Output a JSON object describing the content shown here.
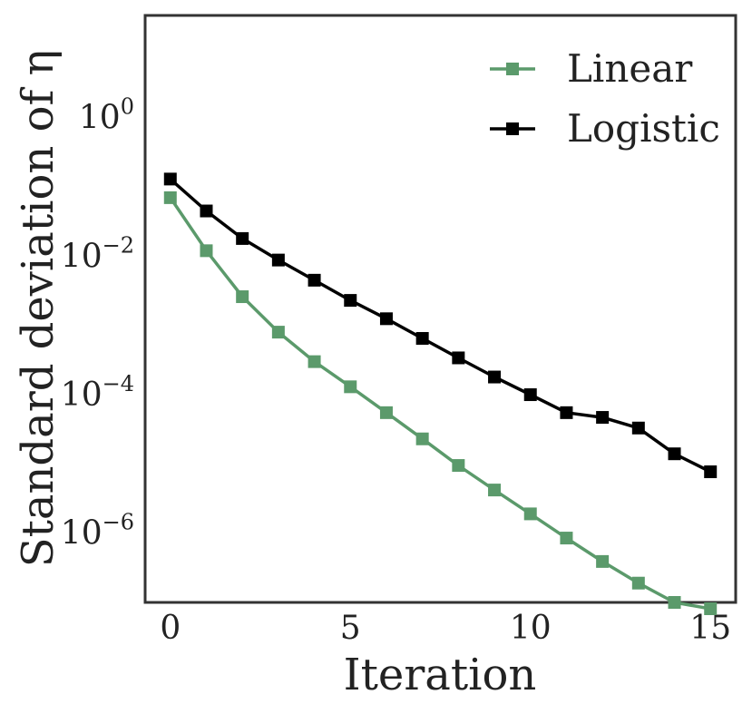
{
  "chart_data": {
    "type": "line",
    "xlabel": "Iteration",
    "ylabel": "Standard deviation of η",
    "xlim": [
      -0.7,
      15.7
    ],
    "ylim": [
      1e-07,
      30
    ],
    "yscale": "log",
    "x_ticks": [
      0,
      5,
      10,
      15
    ],
    "x_tick_labels": [
      "0",
      "5",
      "10",
      "15"
    ],
    "y_ticks": [
      1,
      0.01,
      0.0001,
      1e-06
    ],
    "y_tick_labels": [
      {
        "base": "10",
        "exp": "0"
      },
      {
        "base": "10",
        "exp": "−2"
      },
      {
        "base": "10",
        "exp": "−4"
      },
      {
        "base": "10",
        "exp": "−6"
      }
    ],
    "grid": false,
    "legend_position": "top-right",
    "x": [
      0,
      1,
      2,
      3,
      4,
      5,
      6,
      7,
      8,
      9,
      10,
      11,
      12,
      13,
      14,
      15
    ],
    "series": [
      {
        "name": "Linear",
        "color": "#5b9a6b",
        "marker": "square",
        "values": [
          0.07,
          0.012,
          0.0026,
          0.0008,
          0.0003,
          0.00013,
          5.5e-05,
          2.3e-05,
          9.5e-06,
          4.2e-06,
          1.9e-06,
          8.5e-07,
          3.9e-07,
          1.9e-07,
          1e-07,
          8.1e-08
        ]
      },
      {
        "name": "Logistic",
        "color": "#000000",
        "marker": "square",
        "values": [
          0.13,
          0.045,
          0.018,
          0.0088,
          0.0045,
          0.0023,
          0.00125,
          0.00065,
          0.00034,
          0.00018,
          0.0001,
          5.5e-05,
          4.7e-05,
          3.3e-05,
          1.4e-05,
          7.7e-06
        ]
      }
    ]
  }
}
